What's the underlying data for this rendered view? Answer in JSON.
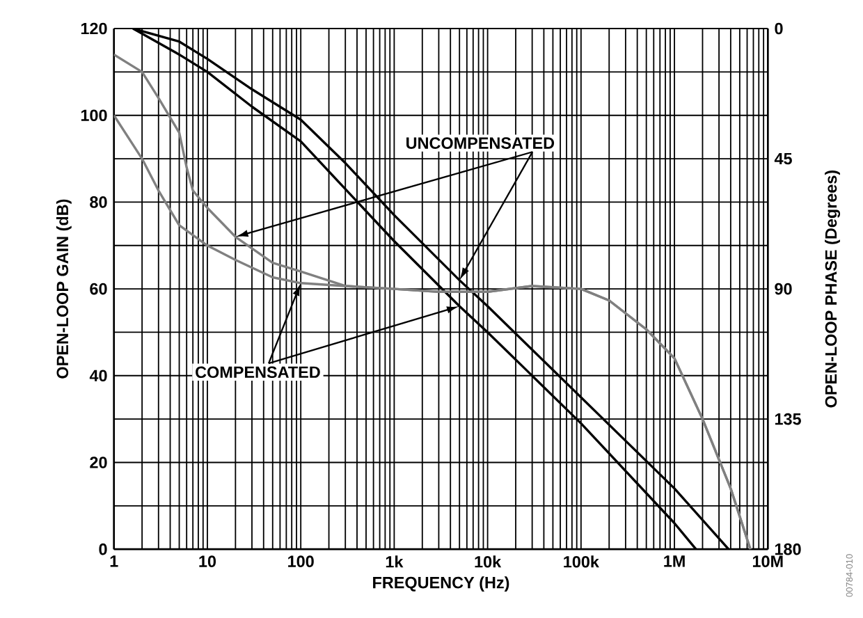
{
  "chart_data": {
    "type": "line",
    "xlabel": "FREQUENCY (Hz)",
    "ylabel": "OPEN-LOOP GAIN (dB)",
    "y2label": "OPEN-LOOP PHASE (Degrees)",
    "log": "x",
    "grid": true,
    "marker": "none",
    "line_style": "solid",
    "xlim": [
      1,
      10000000
    ],
    "xticks": [
      1,
      10,
      100,
      {
        "value": 1000,
        "label": "1k"
      },
      {
        "value": 10000,
        "label": "10k"
      },
      {
        "value": 100000,
        "label": "100k"
      },
      {
        "value": 1000000,
        "label": "1M"
      },
      {
        "value": 10000000,
        "label": "10M"
      }
    ],
    "ylim": [
      0,
      120
    ],
    "yticks": [
      0,
      {
        "value": 10,
        "label": null
      },
      20,
      {
        "value": 30,
        "label": null
      },
      40,
      {
        "value": 50,
        "label": null
      },
      60,
      {
        "value": 70,
        "label": null
      },
      80,
      {
        "value": 90,
        "label": null
      },
      100,
      {
        "value": 110,
        "label": null
      },
      120
    ],
    "y2lim": [
      180,
      0
    ],
    "y2ticks": [
      0,
      45,
      90,
      135,
      180
    ],
    "series": [
      {
        "color": "#000000",
        "x": [
          1.6,
          5,
          10,
          30,
          100,
          300,
          1000,
          5000,
          10000,
          100000,
          1000000,
          3800000
        ],
        "values": [
          120,
          117,
          113,
          106,
          99,
          89,
          77,
          62,
          56,
          35,
          14,
          0
        ]
      },
      {
        "color": "#000000",
        "x": [
          1.6,
          5,
          10,
          30,
          100,
          300,
          1000,
          5000,
          10000,
          100000,
          1000000,
          1700000
        ],
        "values": [
          120,
          114,
          110,
          102,
          94,
          83,
          71,
          56,
          50,
          29,
          6,
          0
        ]
      },
      {
        "color": "#808080",
        "axis": "y2",
        "x": [
          1,
          2,
          3,
          5,
          6,
          7,
          10,
          20,
          50,
          100,
          300,
          1000,
          3000,
          10000,
          30000,
          100000,
          200000,
          500000,
          1000000,
          2000000,
          4000000,
          6500000
        ],
        "values": [
          9,
          15,
          24,
          36,
          48,
          56,
          62,
          72,
          81,
          84,
          89,
          90,
          91,
          91,
          89,
          90,
          94,
          104,
          114,
          135,
          159,
          180
        ]
      },
      {
        "color": "#808080",
        "axis": "y2",
        "x": [
          1,
          2,
          3,
          5,
          10,
          20,
          50,
          100,
          300,
          1000,
          3000,
          10000,
          30000,
          100000,
          200000,
          500000,
          1000000,
          2000000,
          4000000,
          6500000
        ],
        "values": [
          30,
          45,
          56,
          68,
          75,
          80,
          86,
          88,
          89,
          90,
          91,
          91,
          89,
          90,
          94,
          104,
          114,
          135,
          159,
          180
        ]
      }
    ],
    "annotations": [
      {
        "text": "UNCOMPENSATED",
        "x": 5000,
        "y": 62
      },
      {
        "text": "COMPENSATED",
        "x": 5000,
        "y": 56
      },
      "00784-010"
    ]
  }
}
